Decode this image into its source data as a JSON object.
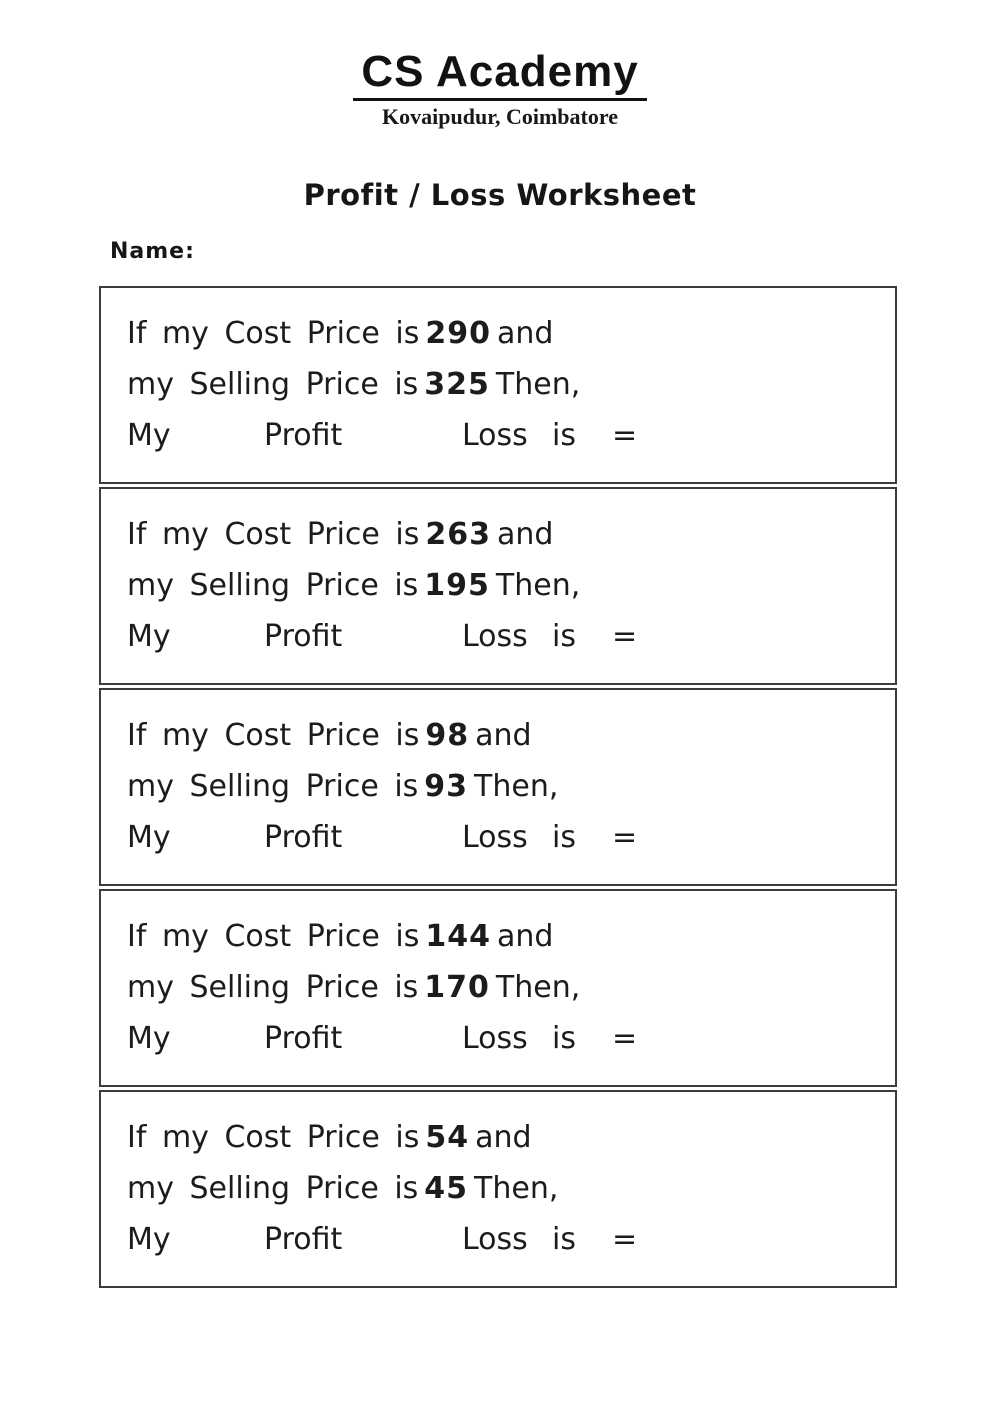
{
  "header": {
    "school_name": "CS Academy",
    "location": "Kovaipudur, Coimbatore"
  },
  "worksheet_title": "Profit / Loss Worksheet",
  "name_label": "Name:",
  "labels": {
    "line1_prefix": "If my Cost Price is",
    "line1_suffix": "and",
    "line2_prefix": "my Selling Price is",
    "line2_suffix": "Then,",
    "my": "My",
    "profit": "Profit",
    "loss": "Loss",
    "is": "is",
    "equals": "="
  },
  "problems": [
    {
      "cost_price": "290",
      "selling_price": "325"
    },
    {
      "cost_price": "263",
      "selling_price": "195"
    },
    {
      "cost_price": "98",
      "selling_price": "93"
    },
    {
      "cost_price": "144",
      "selling_price": "170"
    },
    {
      "cost_price": "54",
      "selling_price": "45"
    }
  ],
  "colors": {
    "text": "#1c1c1c",
    "border": "#3c3c3c",
    "background": "#ffffff"
  }
}
